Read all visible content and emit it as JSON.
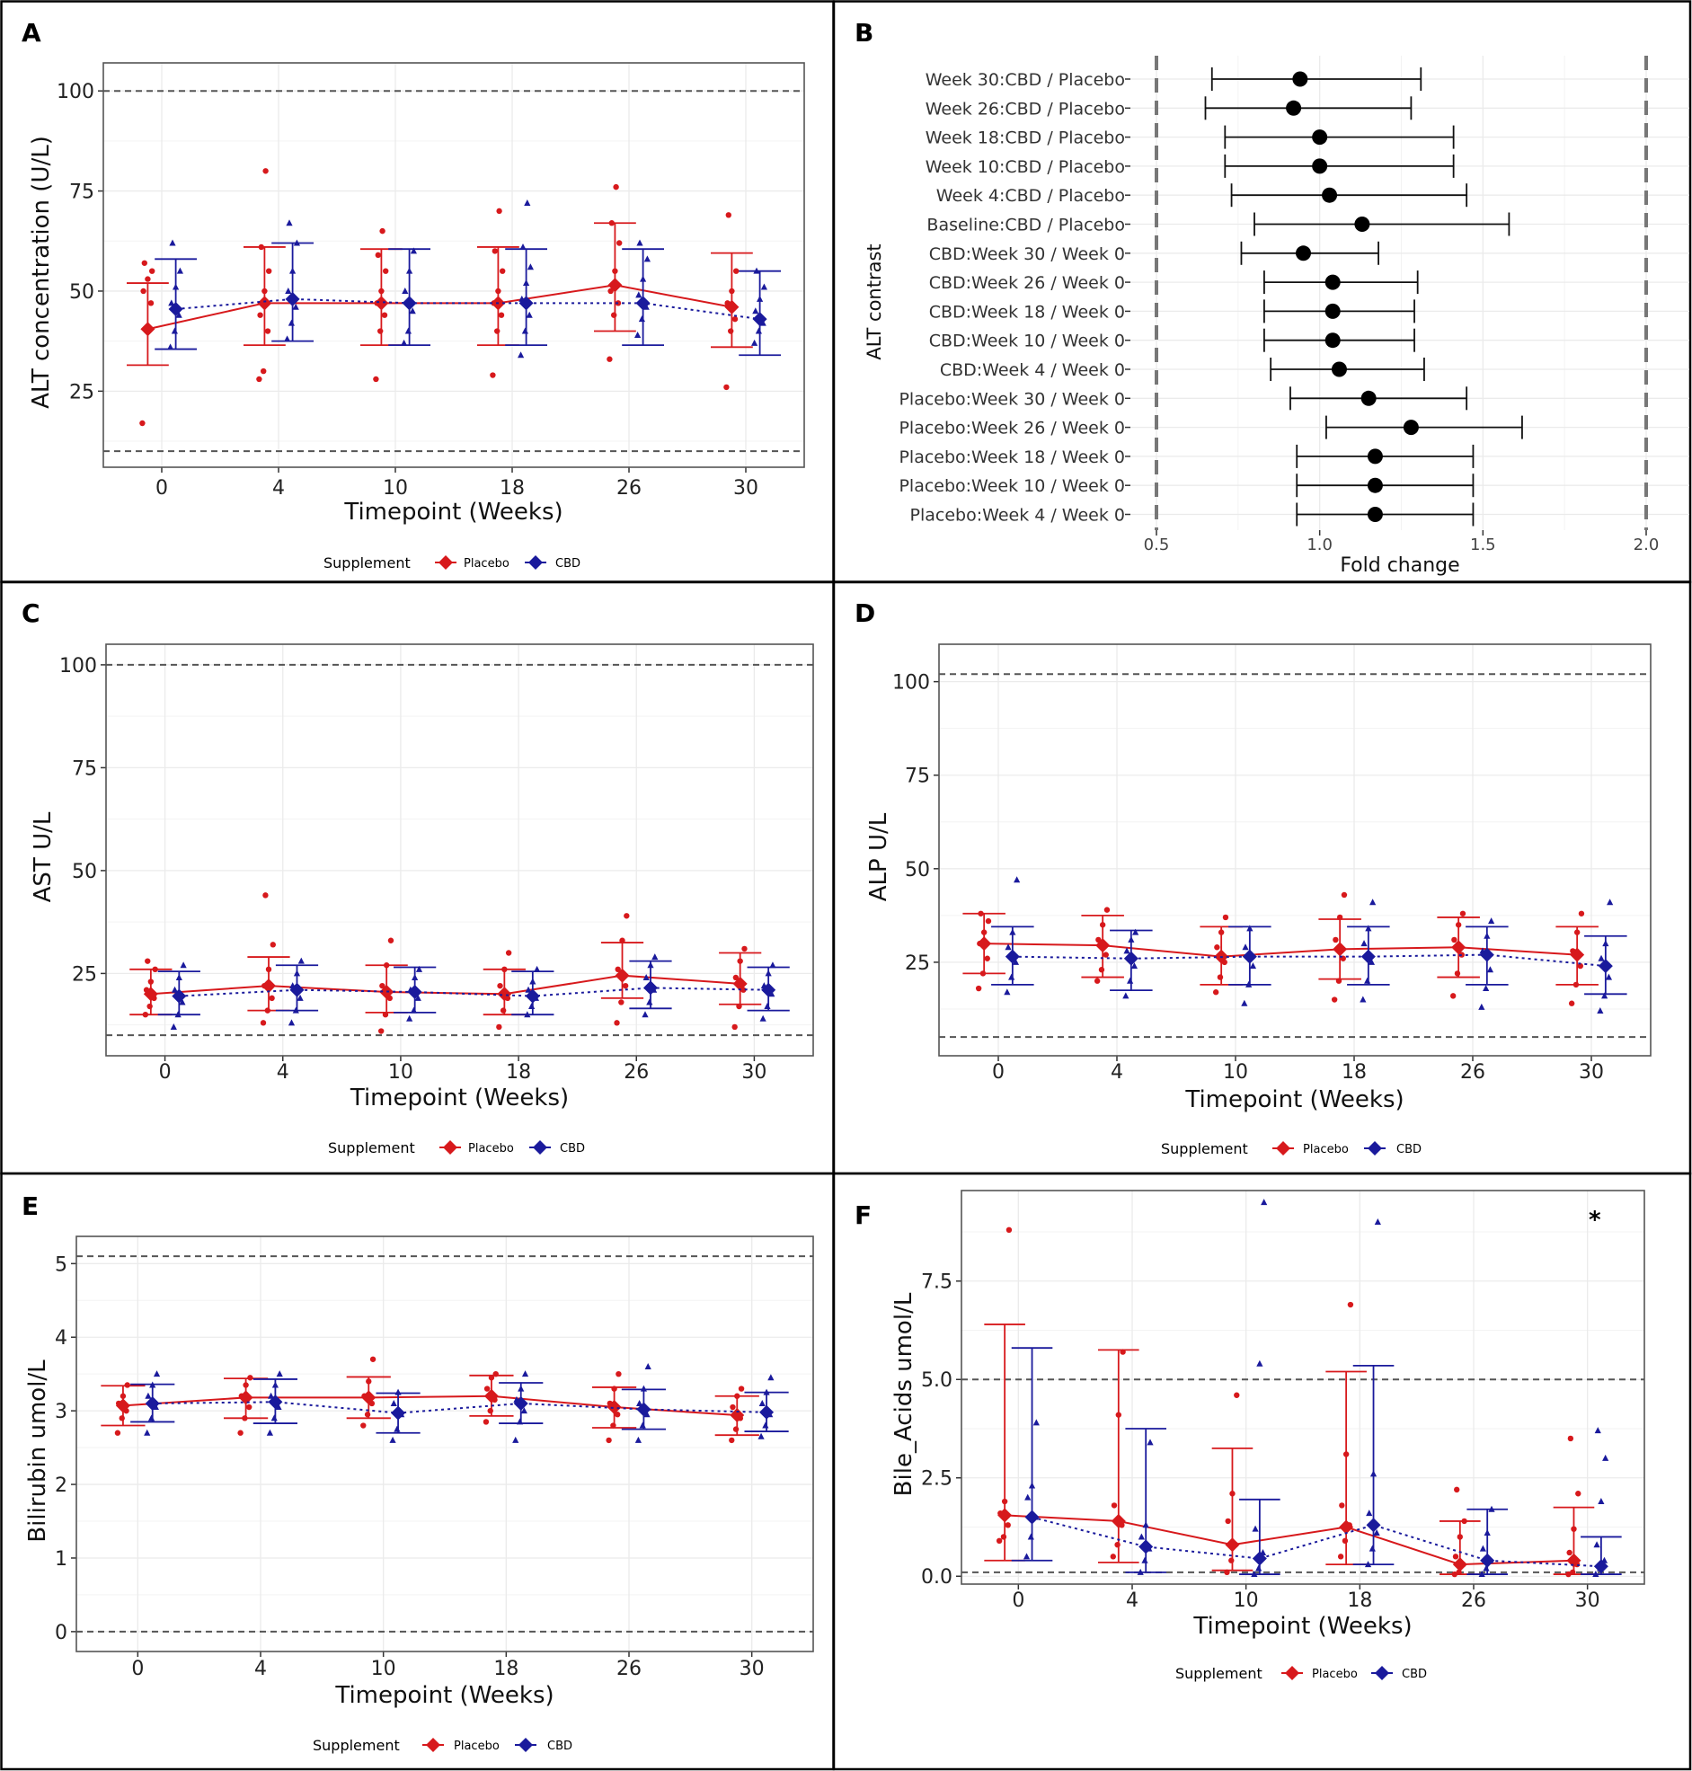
{
  "colors": {
    "placebo": "#d7191c",
    "cbd": "#1a1a9c",
    "refline": "#555555",
    "grid": "#ebebeb"
  },
  "panels": {
    "A": {
      "label": "A",
      "legend_title": "Supplement",
      "legend_placebo": "Placebo",
      "legend_cbd": "CBD"
    },
    "B": {
      "label": "B"
    },
    "C": {
      "label": "C",
      "legend_title": "Supplement",
      "legend_placebo": "Placebo",
      "legend_cbd": "CBD"
    },
    "D": {
      "label": "D",
      "legend_title": "Supplement",
      "legend_placebo": "Placebo",
      "legend_cbd": "CBD"
    },
    "E": {
      "label": "E",
      "legend_title": "Supplement",
      "legend_placebo": "Placebo",
      "legend_cbd": "CBD"
    },
    "F": {
      "label": "F",
      "legend_title": "Supplement",
      "legend_placebo": "Placebo",
      "legend_cbd": "CBD",
      "annotation": "*"
    }
  },
  "chart_data": [
    {
      "id": "A",
      "type": "scatter",
      "title": "",
      "ylabel": "ALT concentration (U/L)",
      "xlabel": "Timepoint (Weeks)",
      "categories": [
        "0",
        "4",
        "10",
        "18",
        "26",
        "30"
      ],
      "ylim": [
        6,
        107
      ],
      "yticks": [
        25,
        50,
        75,
        100
      ],
      "ref_lines": [
        10,
        100
      ],
      "series": [
        {
          "name": "Placebo",
          "means": [
            40.5,
            47,
            47,
            47,
            51.5,
            46
          ],
          "lo": [
            31.5,
            36.5,
            36.5,
            36.5,
            40,
            36
          ],
          "hi": [
            52,
            61,
            60.5,
            61,
            67,
            59.5
          ],
          "points": [
            [
              17,
              40,
              47,
              50,
              53,
              55,
              57
            ],
            [
              28,
              30,
              40,
              44,
              50,
              55,
              61,
              80
            ],
            [
              28,
              40,
              44,
              47,
              50,
              55,
              59,
              65
            ],
            [
              29,
              40,
              44,
              47,
              50,
              55,
              60,
              70
            ],
            [
              33,
              44,
              47,
              50,
              55,
              62,
              67,
              76
            ],
            [
              26,
              40,
              43,
              47,
              50,
              55,
              69
            ]
          ]
        },
        {
          "name": "CBD",
          "means": [
            45.5,
            48,
            47,
            47,
            47,
            43
          ],
          "lo": [
            35.5,
            37.5,
            36.5,
            36.5,
            36.5,
            34
          ],
          "hi": [
            58,
            62,
            60.5,
            60.5,
            60.5,
            55
          ],
          "points": [
            [
              36,
              40,
              44,
              47,
              51,
              55,
              62
            ],
            [
              38,
              42,
              46,
              50,
              55,
              62,
              67
            ],
            [
              37,
              40,
              45,
              50,
              55,
              60
            ],
            [
              34,
              40,
              44,
              48,
              52,
              56,
              61,
              72
            ],
            [
              39,
              43,
              46,
              49,
              53,
              58,
              62
            ],
            [
              37,
              40,
              42,
              45,
              48,
              51,
              55
            ]
          ]
        }
      ]
    },
    {
      "id": "B",
      "type": "forest",
      "title": "",
      "ylabel": "ALT contrast",
      "xlabel": "Fold change",
      "xlim": [
        0.5,
        2.0
      ],
      "xticks": [
        0.5,
        1.0,
        1.5,
        2.0
      ],
      "ref_lines": [
        0.5,
        2.0
      ],
      "rows": [
        {
          "label": "Week 30:CBD / Placebo",
          "est": 0.94,
          "lo": 0.67,
          "hi": 1.31
        },
        {
          "label": "Week 26:CBD / Placebo",
          "est": 0.92,
          "lo": 0.65,
          "hi": 1.28
        },
        {
          "label": "Week 18:CBD / Placebo",
          "est": 1.0,
          "lo": 0.71,
          "hi": 1.41
        },
        {
          "label": "Week 10:CBD / Placebo",
          "est": 1.0,
          "lo": 0.71,
          "hi": 1.41
        },
        {
          "label": "Week 4:CBD / Placebo",
          "est": 1.03,
          "lo": 0.73,
          "hi": 1.45
        },
        {
          "label": "Baseline:CBD / Placebo",
          "est": 1.13,
          "lo": 0.8,
          "hi": 1.58
        },
        {
          "label": "CBD:Week 30 / Week 0",
          "est": 0.95,
          "lo": 0.76,
          "hi": 1.18
        },
        {
          "label": "CBD:Week 26 / Week 0",
          "est": 1.04,
          "lo": 0.83,
          "hi": 1.3
        },
        {
          "label": "CBD:Week 18 / Week 0",
          "est": 1.04,
          "lo": 0.83,
          "hi": 1.29
        },
        {
          "label": "CBD:Week 10 / Week 0",
          "est": 1.04,
          "lo": 0.83,
          "hi": 1.29
        },
        {
          "label": "CBD:Week 4 / Week 0",
          "est": 1.06,
          "lo": 0.85,
          "hi": 1.32
        },
        {
          "label": "Placebo:Week 30 / Week 0",
          "est": 1.15,
          "lo": 0.91,
          "hi": 1.45
        },
        {
          "label": "Placebo:Week 26 / Week 0",
          "est": 1.28,
          "lo": 1.02,
          "hi": 1.62
        },
        {
          "label": "Placebo:Week 18 / Week 0",
          "est": 1.17,
          "lo": 0.93,
          "hi": 1.47
        },
        {
          "label": "Placebo:Week 10 / Week 0",
          "est": 1.17,
          "lo": 0.93,
          "hi": 1.47
        },
        {
          "label": "Placebo:Week 4 / Week 0",
          "est": 1.17,
          "lo": 0.93,
          "hi": 1.47
        }
      ]
    },
    {
      "id": "C",
      "type": "scatter",
      "title": "",
      "ylabel": "AST U/L",
      "xlabel": "Timepoint (Weeks)",
      "categories": [
        "0",
        "4",
        "10",
        "18",
        "26",
        "30"
      ],
      "ylim": [
        5,
        105
      ],
      "yticks": [
        25,
        50,
        75,
        100
      ],
      "ref_lines": [
        10,
        100
      ],
      "series": [
        {
          "name": "Placebo",
          "means": [
            20,
            22,
            20.5,
            20,
            24.5,
            22.5
          ],
          "lo": [
            15,
            16,
            15.5,
            15,
            19,
            17.5
          ],
          "hi": [
            26,
            29,
            27,
            26,
            32.5,
            30
          ],
          "points": [
            [
              15,
              17,
              19,
              21,
              23,
              26,
              28
            ],
            [
              13,
              16,
              19,
              22,
              26,
              32,
              44
            ],
            [
              11,
              15,
              19,
              22,
              27,
              33
            ],
            [
              12,
              16,
              19,
              22,
              26,
              30
            ],
            [
              13,
              18,
              22,
              26,
              33,
              39
            ],
            [
              12,
              17,
              21,
              24,
              28,
              31
            ]
          ]
        },
        {
          "name": "CBD",
          "means": [
            19.5,
            21,
            20.5,
            19.5,
            21.5,
            21
          ],
          "lo": [
            15,
            16,
            15.5,
            15,
            16.5,
            16
          ],
          "hi": [
            25.5,
            27,
            26.5,
            25.5,
            28,
            26.5
          ],
          "points": [
            [
              12,
              15,
              18,
              21,
              24,
              27
            ],
            [
              13,
              16,
              19,
              22,
              25,
              28
            ],
            [
              14,
              16,
              19,
              21,
              24,
              26
            ],
            [
              15,
              17,
              19,
              21,
              23,
              26
            ],
            [
              15,
              18,
              21,
              24,
              27,
              29
            ],
            [
              14,
              17,
              20,
              22,
              25,
              27
            ]
          ]
        }
      ]
    },
    {
      "id": "D",
      "type": "scatter",
      "title": "",
      "ylabel": "ALP U/L",
      "xlabel": "Timepoint (Weeks)",
      "categories": [
        "0",
        "4",
        "10",
        "18",
        "26",
        "30"
      ],
      "ylim": [
        0,
        110
      ],
      "yticks": [
        25,
        50,
        75,
        100
      ],
      "ref_lines": [
        5,
        102
      ],
      "series": [
        {
          "name": "Placebo",
          "means": [
            30,
            29.5,
            26.5,
            28.5,
            29,
            27
          ],
          "lo": [
            22,
            21,
            19,
            20.5,
            21,
            19
          ],
          "hi": [
            38,
            37.5,
            34.5,
            36.5,
            37,
            34.5
          ],
          "points": [
            [
              18,
              22,
              26,
              30,
              33,
              36,
              38
            ],
            [
              20,
              23,
              27,
              31,
              35,
              39
            ],
            [
              17,
              21,
              25,
              29,
              33,
              37
            ],
            [
              15,
              20,
              26,
              31,
              37,
              43
            ],
            [
              16,
              22,
              27,
              31,
              35,
              38
            ],
            [
              14,
              19,
              24,
              28,
              33,
              38
            ]
          ]
        },
        {
          "name": "CBD",
          "means": [
            26.5,
            26,
            26.5,
            26.5,
            27,
            24
          ],
          "lo": [
            19,
            17.5,
            19,
            19,
            19,
            16.5
          ],
          "hi": [
            34.5,
            33.5,
            34.5,
            34.5,
            34.5,
            32
          ],
          "points": [
            [
              17,
              21,
              25,
              29,
              33,
              47
            ],
            [
              16,
              20,
              24,
              28,
              31,
              33
            ],
            [
              14,
              19,
              24,
              29,
              34
            ],
            [
              15,
              20,
              25,
              30,
              34,
              41
            ],
            [
              13,
              18,
              23,
              28,
              32,
              36
            ],
            [
              12,
              16,
              21,
              26,
              30,
              41
            ]
          ]
        }
      ]
    },
    {
      "id": "E",
      "type": "scatter",
      "title": "",
      "ylabel": "Bilirubin umol/L",
      "xlabel": "Timepoint (Weeks)",
      "categories": [
        "0",
        "4",
        "10",
        "18",
        "26",
        "30"
      ],
      "ylim": [
        -0.27,
        5.37
      ],
      "yticks": [
        0,
        1,
        2,
        3,
        4,
        5
      ],
      "ref_lines": [
        0,
        5.1
      ],
      "series": [
        {
          "name": "Placebo",
          "means": [
            3.07,
            3.18,
            3.18,
            3.2,
            3.05,
            2.94
          ],
          "lo": [
            2.8,
            2.9,
            2.9,
            2.93,
            2.77,
            2.67
          ],
          "hi": [
            3.34,
            3.44,
            3.46,
            3.48,
            3.32,
            3.2
          ],
          "points": [
            [
              2.7,
              2.9,
              3.0,
              3.1,
              3.2,
              3.35
            ],
            [
              2.7,
              2.9,
              3.05,
              3.2,
              3.35,
              3.45
            ],
            [
              2.8,
              2.95,
              3.1,
              3.2,
              3.4,
              3.7
            ],
            [
              2.85,
              3.0,
              3.15,
              3.3,
              3.45,
              3.5
            ],
            [
              2.6,
              2.8,
              2.95,
              3.1,
              3.3,
              3.5
            ],
            [
              2.6,
              2.75,
              2.9,
              3.05,
              3.2,
              3.3
            ]
          ]
        },
        {
          "name": "CBD",
          "means": [
            3.1,
            3.12,
            2.97,
            3.1,
            3.02,
            2.98
          ],
          "lo": [
            2.85,
            2.83,
            2.7,
            2.83,
            2.75,
            2.72
          ],
          "hi": [
            3.36,
            3.43,
            3.24,
            3.38,
            3.29,
            3.25
          ],
          "points": [
            [
              2.7,
              2.9,
              3.05,
              3.2,
              3.35,
              3.5
            ],
            [
              2.7,
              2.9,
              3.05,
              3.2,
              3.35,
              3.5
            ],
            [
              2.6,
              2.75,
              2.95,
              3.1,
              3.25
            ],
            [
              2.6,
              2.85,
              3.0,
              3.15,
              3.3,
              3.5
            ],
            [
              2.6,
              2.8,
              2.95,
              3.1,
              3.3,
              3.6
            ],
            [
              2.65,
              2.8,
              2.95,
              3.1,
              3.25,
              3.45
            ]
          ]
        }
      ]
    },
    {
      "id": "F",
      "type": "scatter",
      "title": "",
      "ylabel": "Bile_Acids umol/L",
      "xlabel": "Timepoint (Weeks)",
      "categories": [
        "0",
        "4",
        "10",
        "18",
        "26",
        "30"
      ],
      "ylim": [
        -0.2,
        9.8
      ],
      "yticks": [
        0.0,
        2.5,
        5.0,
        7.5
      ],
      "ytick_labels": [
        "0.0",
        "2.5",
        "5.0",
        "7.5"
      ],
      "ref_lines": [
        0.1,
        5.0
      ],
      "series": [
        {
          "name": "Placebo",
          "means": [
            1.55,
            1.4,
            0.8,
            1.25,
            0.3,
            0.4
          ],
          "lo": [
            0.4,
            0.35,
            0.15,
            0.3,
            0.05,
            0.05
          ],
          "hi": [
            6.4,
            5.75,
            3.25,
            5.2,
            1.4,
            1.75
          ],
          "points": [
            [
              0.9,
              1.0,
              1.3,
              1.6,
              1.9,
              8.8
            ],
            [
              0.5,
              0.8,
              1.3,
              1.8,
              4.1,
              5.7
            ],
            [
              0.1,
              0.4,
              0.8,
              1.4,
              2.1,
              4.6
            ],
            [
              0.5,
              0.9,
              1.3,
              1.8,
              3.1,
              6.9
            ],
            [
              0.05,
              0.1,
              0.3,
              0.5,
              1.0,
              1.4,
              2.2
            ],
            [
              0.05,
              0.1,
              0.3,
              0.6,
              1.2,
              2.1,
              3.5
            ]
          ]
        },
        {
          "name": "CBD",
          "means": [
            1.5,
            0.75,
            0.45,
            1.3,
            0.4,
            0.25
          ],
          "lo": [
            0.4,
            0.1,
            0.05,
            0.3,
            0.05,
            0.05
          ],
          "hi": [
            5.8,
            3.75,
            1.95,
            5.35,
            1.7,
            1.0
          ],
          "points": [
            [
              0.5,
              1.0,
              1.5,
              2.0,
              2.3,
              3.9
            ],
            [
              0.1,
              0.4,
              0.7,
              1.0,
              1.3,
              3.4
            ],
            [
              0.05,
              0.2,
              0.6,
              1.2,
              5.4,
              9.5
            ],
            [
              0.3,
              0.7,
              1.1,
              1.6,
              2.6,
              9.0
            ],
            [
              0.05,
              0.2,
              0.4,
              0.7,
              1.1,
              1.7
            ],
            [
              0.05,
              0.2,
              0.4,
              0.8,
              1.9,
              3.0,
              3.7
            ]
          ]
        }
      ]
    }
  ]
}
